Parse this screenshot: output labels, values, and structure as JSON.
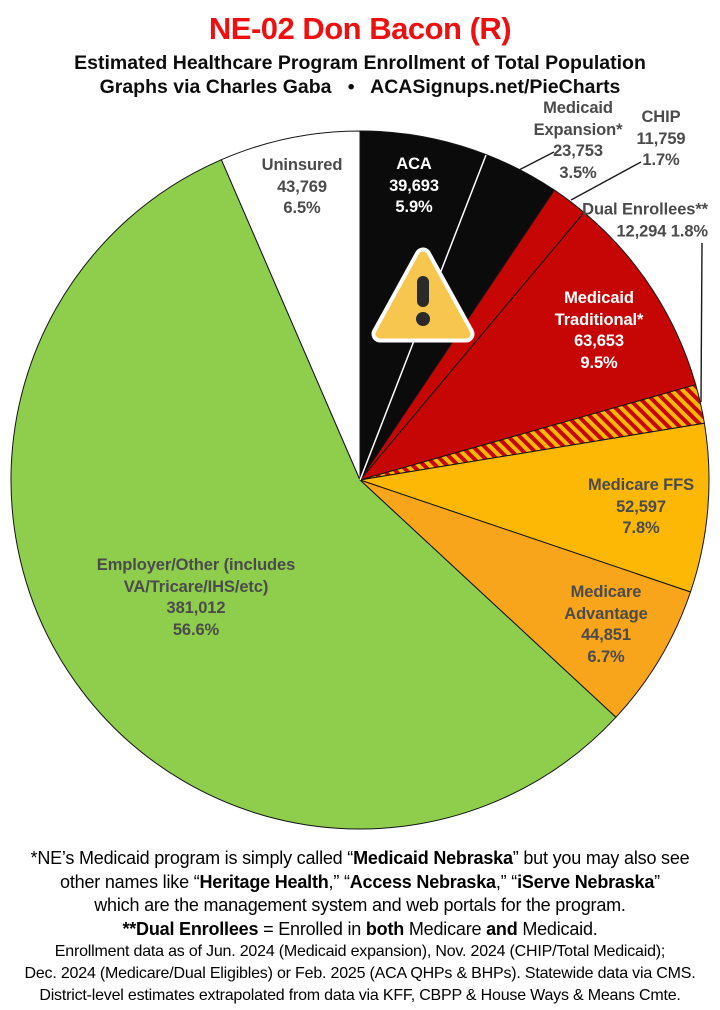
{
  "header": {
    "title": "NE-02 Don Bacon (R)",
    "subtitle": "Estimated Healthcare Program Enrollment of Total Population",
    "credit": "Graphs via Charles Gaba   •   ACASignups.net/PieCharts"
  },
  "icons": {
    "warning": "warning-triangle"
  },
  "colors": {
    "title_red": "#ee1010",
    "black_slice": "#0b0b0b",
    "red_slice": "#c60505",
    "gold_slice": "#fcb805",
    "orange_gold_slice": "#f9a51b",
    "green_slice": "#8fce4d",
    "label_gray": "#4b4b4b",
    "slice_stroke": "#141414"
  },
  "chart_data": {
    "type": "pie",
    "title": "NE-02 Don Bacon (R)",
    "start_angle_deg": 0,
    "direction": "clockwise",
    "legend_position": "labels-on-and-around-pie",
    "slices": [
      {
        "id": "aca",
        "label": "ACA",
        "value": "39,693",
        "pct": "5.9%",
        "pct_num": 5.9,
        "color": "#0b0b0b",
        "text_color": "#ffffff"
      },
      {
        "id": "medicaid_expansion",
        "label": "Medicaid Expansion*",
        "value": "23,753",
        "pct": "3.5%",
        "pct_num": 3.5,
        "color": "#0b0b0b",
        "text_color": "#4b4b4b"
      },
      {
        "id": "chip",
        "label": "CHIP",
        "value": "11,759",
        "pct": "1.7%",
        "pct_num": 1.7,
        "color": "#c60505",
        "text_color": "#4b4b4b"
      },
      {
        "id": "medicaid_traditional",
        "label": "Medicaid Traditional*",
        "value": "63,653",
        "pct": "9.5%",
        "pct_num": 9.5,
        "color": "#c60505",
        "text_color": "#ffffff"
      },
      {
        "id": "dual_enrollees",
        "label": "Dual Enrollees**",
        "value": "12,294",
        "pct": "1.8%",
        "pct_num": 1.8,
        "color": "hatch-red-gold",
        "text_color": "#4b4b4b"
      },
      {
        "id": "medicare_ffs",
        "label": "Medicare FFS",
        "value": "52,597",
        "pct": "7.8%",
        "pct_num": 7.8,
        "color": "#fcb805",
        "text_color": "#4b4b4b"
      },
      {
        "id": "medicare_advantage",
        "label": "Medicare Advantage",
        "value": "44,851",
        "pct": "6.7%",
        "pct_num": 6.7,
        "color": "#f9a51b",
        "text_color": "#4b4b4b"
      },
      {
        "id": "employer_other",
        "label": "Employer/Other (includes VA/Tricare/IHS/etc)",
        "value": "381,012",
        "pct": "56.6%",
        "pct_num": 56.6,
        "color": "#8fce4d",
        "text_color": "#4b4b4b"
      },
      {
        "id": "uninsured",
        "label": "Uninsured",
        "value": "43,769",
        "pct": "6.5%",
        "pct_num": 6.5,
        "color": "#ffffff",
        "text_color": "#4b4b4b"
      }
    ]
  },
  "footnotes": {
    "medicaid_note_lines": [
      [
        {
          "t": "*NE’s Medicaid program is simply called “",
          "b": false
        },
        {
          "t": "Medicaid Nebraska",
          "b": true
        },
        {
          "t": "” but you may also see",
          "b": false
        }
      ],
      [
        {
          "t": "other names like “",
          "b": false
        },
        {
          "t": "Heritage Health",
          "b": true
        },
        {
          "t": ",” “",
          "b": false
        },
        {
          "t": "Access Nebraska",
          "b": true
        },
        {
          "t": ",” “",
          "b": false
        },
        {
          "t": "iServe Nebraska",
          "b": true
        },
        {
          "t": "”",
          "b": false
        }
      ],
      [
        {
          "t": "which are the management system and web portals for the program.",
          "b": false
        }
      ],
      [
        {
          "t": "**Dual Enrollees",
          "b": true
        },
        {
          "t": " = Enrolled in ",
          "b": false
        },
        {
          "t": "both",
          "b": true
        },
        {
          "t": " Medicare ",
          "b": false
        },
        {
          "t": "and",
          "b": true
        },
        {
          "t": " Medicaid.",
          "b": false
        }
      ]
    ],
    "data_note_lines": [
      "Enrollment data as of Jun. 2024 (Medicaid expansion), Nov. 2024 (CHIP/Total Medicaid);",
      "Dec. 2024 (Medicare/Dual Eligibles) or Feb. 2025 (ACA QHPs & BHPs). Statewide data via CMS.",
      "District-level estimates extrapolated from data via KFF, CBPP & House Ways & Means Cmte."
    ]
  }
}
